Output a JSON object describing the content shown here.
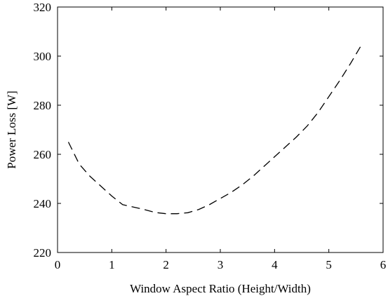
{
  "chart_data": {
    "type": "line",
    "title": "",
    "xlabel": "Window Aspect Ratio (Height/Width)",
    "ylabel": "Power Loss [W]",
    "xlim": [
      0,
      6
    ],
    "ylim": [
      220,
      320
    ],
    "xticks": [
      "0",
      "1",
      "2",
      "3",
      "4",
      "5",
      "6"
    ],
    "yticks": [
      "220",
      "240",
      "260",
      "280",
      "300",
      "320"
    ],
    "grid": false,
    "legend": "none",
    "series": [
      {
        "line_style": "dashed",
        "color": "#000000",
        "x": [
          0.2,
          0.4,
          0.6,
          0.8,
          1.0,
          1.2,
          1.4,
          1.6,
          1.8,
          2.0,
          2.2,
          2.4,
          2.6,
          2.8,
          3.0,
          3.2,
          3.4,
          3.6,
          3.8,
          4.0,
          4.2,
          4.4,
          4.6,
          4.8,
          5.0,
          5.2,
          5.4,
          5.6
        ],
        "y": [
          265.0,
          256.0,
          251.0,
          247.0,
          243.0,
          239.5,
          238.5,
          237.5,
          236.3,
          235.8,
          235.8,
          236.2,
          237.5,
          239.5,
          242.0,
          244.5,
          247.5,
          251.0,
          255.0,
          259.0,
          263.0,
          267.0,
          271.5,
          277.0,
          283.5,
          290.0,
          297.0,
          304.5
        ]
      }
    ]
  }
}
